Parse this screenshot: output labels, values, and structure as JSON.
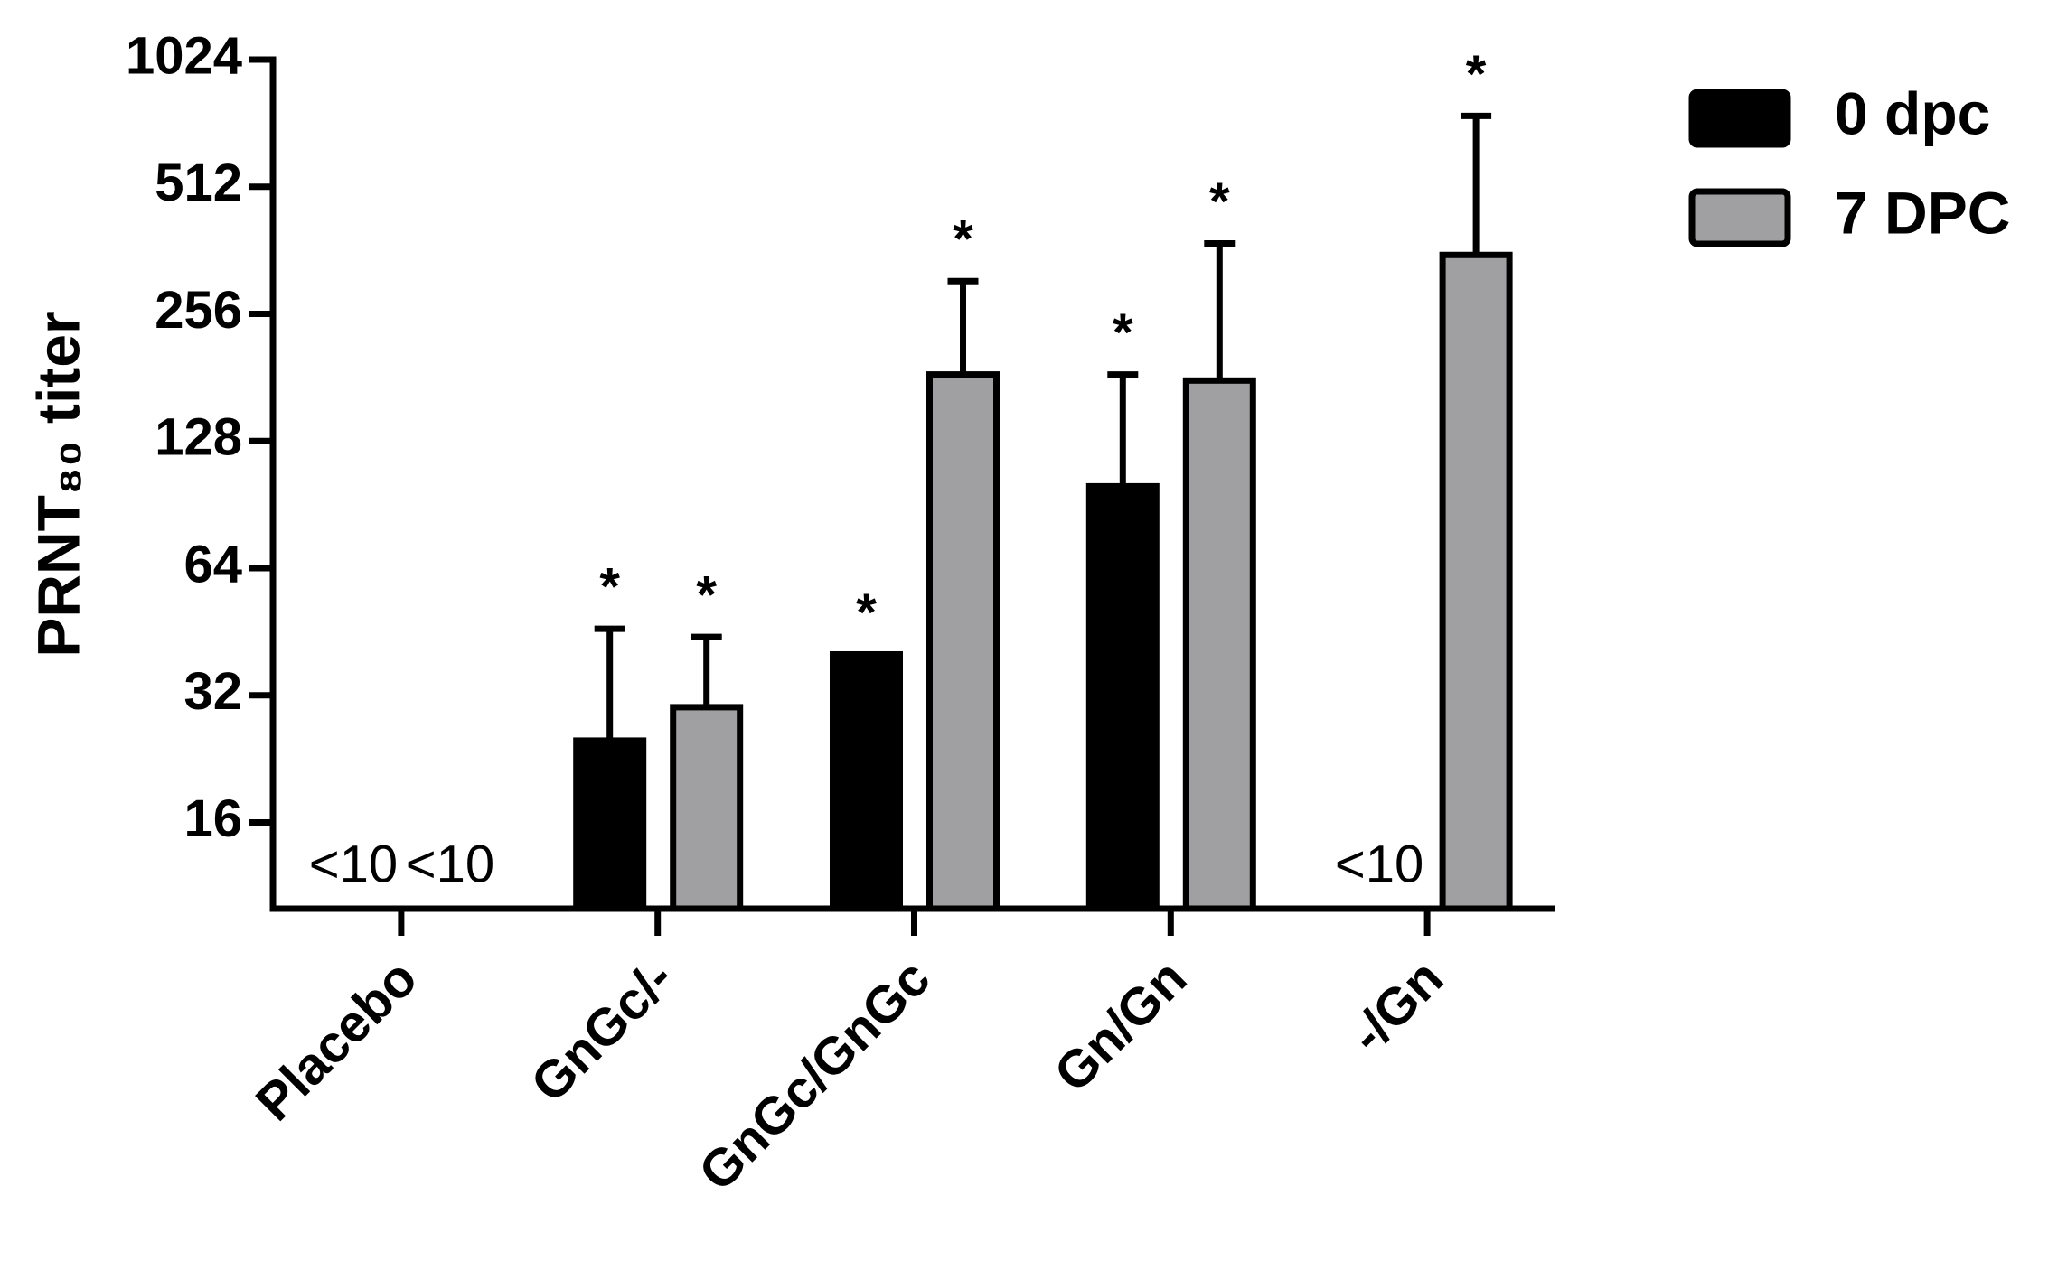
{
  "chart_data": {
    "type": "bar",
    "y_label": "PRNT₈₀ titer",
    "categories": [
      "Placebo",
      "GnGc/-",
      "GnGc/GnGc",
      "Gn/Gn",
      "-/Gn"
    ],
    "series": [
      {
        "name": "0 dpc",
        "color": "#000000",
        "values": [
          null,
          25,
          40,
          100,
          null
        ],
        "errors": [
          null,
          21,
          null,
          84,
          null
        ],
        "value_labels": [
          "<10",
          null,
          null,
          null,
          "<10"
        ],
        "significance": [
          null,
          "*",
          "*",
          "*",
          null
        ]
      },
      {
        "name": "7 DPC",
        "color": "#a0a0a3",
        "values": [
          null,
          30,
          184,
          178,
          353
        ],
        "errors": [
          null,
          14,
          122,
          198,
          400
        ],
        "value_labels": [
          "<10",
          null,
          null,
          null,
          null
        ],
        "significance": [
          null,
          "*",
          "*",
          "*",
          "*"
        ]
      }
    ],
    "yscale": "log2",
    "ylim": [
      10,
      1024
    ],
    "yticks": [
      16,
      32,
      64,
      128,
      256,
      512,
      1024
    ],
    "legend": "right"
  }
}
